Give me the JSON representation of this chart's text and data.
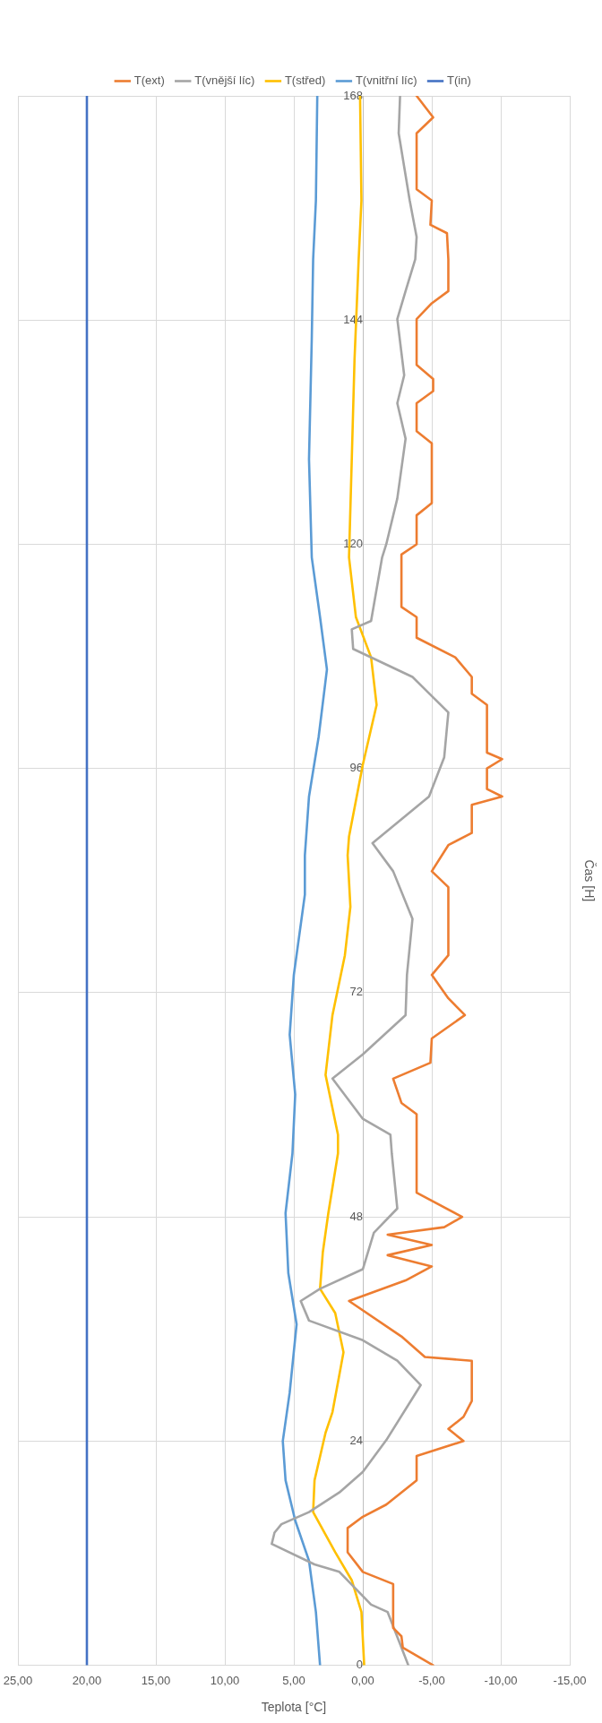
{
  "chart_data": {
    "type": "line",
    "orientation": "horizontal",
    "xlabel": "Teplota [°C]",
    "ylabel": "Čas [H]",
    "ylim": [
      0,
      168
    ],
    "yticks": [
      0,
      24,
      48,
      72,
      96,
      120,
      144,
      168
    ],
    "xlim": [
      25,
      -15
    ],
    "xticks": [
      {
        "value": -15,
        "label": "-15,00"
      },
      {
        "value": -10,
        "label": "-10,00"
      },
      {
        "value": -5,
        "label": "-5,00"
      },
      {
        "value": 0,
        "label": "0,00"
      },
      {
        "value": 5,
        "label": "5,00"
      },
      {
        "value": 10,
        "label": "10,00"
      },
      {
        "value": 15,
        "label": "15,00"
      },
      {
        "value": 20,
        "label": "20,00"
      },
      {
        "value": 25,
        "label": "25,00"
      }
    ],
    "grid": true,
    "legend": "top",
    "marker": "none",
    "line_style": "solid",
    "series": [
      {
        "name": "T(ext)",
        "color": "#ed7d31",
        "x": [
          0,
          1.9,
          3.1,
          4,
          8.7,
          10,
          12.1,
          14.7,
          15.9,
          17.2,
          18.5,
          19.8,
          22.4,
          24,
          25.3,
          26.6,
          28.3,
          32.6,
          33,
          35.2,
          39,
          41.2,
          42.7,
          43.9,
          45,
          46.1,
          46.9,
          48,
          50.6,
          54.8,
          59,
          60.2,
          62.8,
          64.5,
          67.1,
          69.6,
          71.4,
          73.9,
          76,
          83.3,
          85,
          87.8,
          89.1,
          92.1,
          93,
          93.8,
          96,
          97,
          97.7,
          102.8,
          104,
          105.8,
          107.9,
          110,
          112.2,
          113.3,
          118.9,
          120,
          123.1,
          124.4,
          130.8,
          132.1,
          135.1,
          136.4,
          137.7,
          139.2,
          144.1,
          145.8,
          147.1,
          150.5,
          153.3,
          154.2,
          156.8,
          158,
          164,
          165.7,
          168
        ],
        "values": [
          -5.1,
          -2.9,
          -2.8,
          -2.2,
          -2.2,
          0,
          1.1,
          1.1,
          0,
          -1.7,
          -2.8,
          -3.9,
          -3.9,
          -7.3,
          -6.2,
          -7.3,
          -7.9,
          -7.9,
          -4.5,
          -2.8,
          1,
          -3.1,
          -5,
          -1.8,
          -5,
          -1.8,
          -5.9,
          -7.2,
          -3.9,
          -3.9,
          -3.9,
          -2.8,
          -2.2,
          -4.9,
          -5,
          -7.4,
          -6.2,
          -5,
          -6.2,
          -6.2,
          -5,
          -6.2,
          -7.9,
          -7.9,
          -10.1,
          -9,
          -9,
          -10.1,
          -9,
          -9,
          -7.9,
          -7.9,
          -6.7,
          -3.9,
          -3.9,
          -2.8,
          -2.8,
          -3.9,
          -3.9,
          -5,
          -5,
          -3.9,
          -3.9,
          -5.1,
          -5.1,
          -3.9,
          -3.9,
          -5,
          -6.2,
          -6.2,
          -6.1,
          -4.9,
          -5,
          -3.9,
          -3.9,
          -5.1,
          -3.9
        ]
      },
      {
        "name": "T(vnější líc)",
        "color": "#a5a5a5",
        "x": [
          0,
          1.9,
          5.7,
          6.5,
          10,
          10.8,
          13,
          14.2,
          15.1,
          16.4,
          18.5,
          20.7,
          24.1,
          30,
          32.6,
          34.8,
          36.9,
          39,
          40.3,
          42.4,
          46.3,
          48.9,
          54.8,
          56.8,
          58.5,
          62.8,
          65.4,
          69.6,
          73.9,
          79.9,
          85,
          88,
          93,
          97.2,
          102,
          105.8,
          108.8,
          110.9,
          111.8,
          118.6,
          120,
          124.9,
          131.3,
          135.1,
          138.1,
          144.1,
          147.1,
          150.5,
          152.9,
          156.8,
          164,
          168
        ],
        "values": [
          -3.3,
          -2.8,
          -1.8,
          -0.6,
          1.7,
          3.5,
          6.6,
          6.4,
          5.9,
          3.9,
          1.7,
          0,
          -1.7,
          -4.2,
          -2.5,
          0,
          3.9,
          4.5,
          3.1,
          0,
          -0.8,
          -2.5,
          -2.1,
          -2,
          0,
          2.2,
          0,
          -3.1,
          -3.2,
          -3.6,
          -2.2,
          -0.7,
          -4.8,
          -5.9,
          -6.2,
          -3.6,
          0.7,
          0.8,
          -0.6,
          -1.4,
          -1.7,
          -2.5,
          -3.1,
          -2.5,
          -3,
          -2.5,
          -3.1,
          -3.8,
          -3.9,
          -3.4,
          -2.6,
          -2.7
        ]
      },
      {
        "name": "T(střed)",
        "color": "#ffc000",
        "x": [
          0,
          5.7,
          9.1,
          12.1,
          16.4,
          19.8,
          24.9,
          27.1,
          33.5,
          37.7,
          40.3,
          44.2,
          48.4,
          54.8,
          56.8,
          63.2,
          69.6,
          76,
          81.2,
          86.7,
          88.7,
          96.4,
          102.8,
          107.9,
          112.2,
          118.6,
          129.1,
          139.8,
          150.5,
          156.8,
          168
        ],
        "values": [
          -0.1,
          0.1,
          0.8,
          2,
          3.6,
          3.5,
          2.7,
          2.2,
          1.4,
          2,
          3.1,
          2.9,
          2.5,
          1.8,
          1.8,
          2.7,
          2.2,
          1.3,
          0.9,
          1.1,
          1,
          0,
          -1,
          -0.6,
          0.5,
          1,
          0.8,
          0.6,
          0.3,
          0.1,
          0.2
        ]
      },
      {
        "name": "T(vnitřní líc)",
        "color": "#5b9bd5",
        "x": [
          0,
          5.7,
          11.2,
          15.5,
          19.8,
          24,
          29.2,
          36.5,
          42,
          48.4,
          54.8,
          61.1,
          67.5,
          73.9,
          82.5,
          86.7,
          93,
          99.4,
          106.6,
          112.2,
          118.6,
          129.1,
          142,
          150.5,
          156.8,
          168
        ],
        "values": [
          3.1,
          3.4,
          3.9,
          4.9,
          5.6,
          5.8,
          5.3,
          4.8,
          5.4,
          5.6,
          5.1,
          4.9,
          5.3,
          5,
          4.2,
          4.2,
          3.9,
          3.2,
          2.6,
          3.1,
          3.7,
          3.9,
          3.7,
          3.6,
          3.4,
          3.3
        ]
      },
      {
        "name": "T(in)",
        "color": "#4472c4",
        "x": [
          0,
          168
        ],
        "values": [
          20,
          20
        ]
      }
    ]
  }
}
